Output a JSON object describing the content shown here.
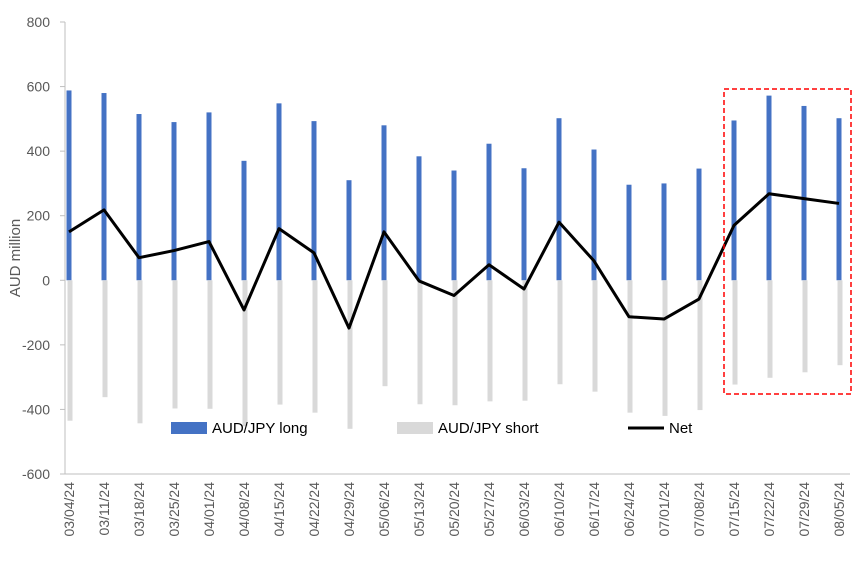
{
  "chart_data": {
    "type": "bar",
    "title": "",
    "ylabel": "AUD million",
    "xlabel": "",
    "ylim": [
      -600,
      800
    ],
    "yticks": [
      -600,
      -400,
      -200,
      0,
      200,
      400,
      600,
      800
    ],
    "grid": false,
    "categories": [
      "03/04/24",
      "03/11/24",
      "03/18/24",
      "03/25/24",
      "04/01/24",
      "04/08/24",
      "04/15/24",
      "04/22/24",
      "04/29/24",
      "05/06/24",
      "05/13/24",
      "05/20/24",
      "05/27/24",
      "06/03/24",
      "06/10/24",
      "06/17/24",
      "06/24/24",
      "07/01/24",
      "07/08/24",
      "07/15/24",
      "07/22/24",
      "07/29/24",
      "08/05/24"
    ],
    "series": [
      {
        "name": "AUD/JPY long",
        "type": "bar",
        "color": "#4472C4",
        "values": [
          588,
          580,
          515,
          490,
          520,
          370,
          548,
          493,
          310,
          480,
          384,
          340,
          423,
          347,
          502,
          405,
          296,
          300,
          346,
          495,
          572,
          540,
          502
        ]
      },
      {
        "name": "AUD/JPY short",
        "type": "bar",
        "color": "#D9D9D9",
        "values": [
          -435,
          -362,
          -443,
          -397,
          -398,
          -452,
          -385,
          -410,
          -460,
          -328,
          -384,
          -387,
          -375,
          -373,
          -322,
          -345,
          -410,
          -420,
          -402,
          -323,
          -302,
          -285,
          -263
        ]
      },
      {
        "name": "Net",
        "type": "line",
        "color": "#000000",
        "values": [
          150,
          218,
          70,
          92,
          120,
          -92,
          160,
          85,
          -148,
          150,
          -2,
          -47,
          48,
          -27,
          180,
          60,
          -113,
          -120,
          -58,
          170,
          268,
          253,
          238
        ]
      }
    ],
    "legend": {
      "placement": "inside-bottom",
      "items": [
        "AUD/JPY long",
        "AUD/JPY short",
        "Net"
      ]
    },
    "highlight": {
      "style": "dashed-red-box",
      "color": "#FF0000",
      "from_category": "07/15/24",
      "to_category": "08/05/24"
    }
  }
}
